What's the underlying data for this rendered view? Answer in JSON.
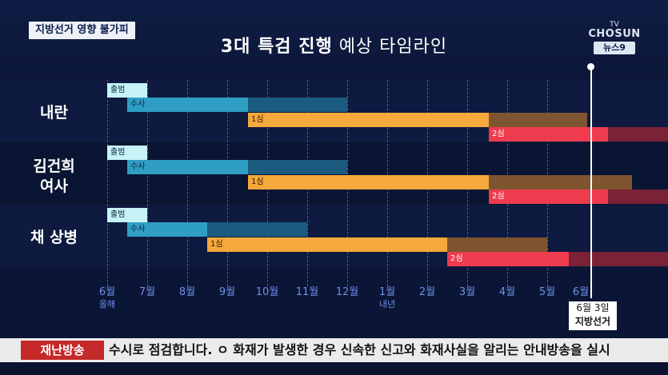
{
  "header": {
    "tag": "지방선거 영향 불가피",
    "title_bold": "3대 특검 진행",
    "title_light": "예상 타임라인"
  },
  "logo": {
    "line1": "TV",
    "line2": "CHOSUN",
    "line3": "뉴스9"
  },
  "rows": [
    {
      "label": "내란"
    },
    {
      "label_line1": "김건희",
      "label_line2": "여사"
    },
    {
      "label": "채 상병"
    }
  ],
  "bars": {
    "launch": "출범",
    "investigation": "수사",
    "first_trial": "1심",
    "second_trial": "2심"
  },
  "axis": {
    "months": [
      "6월",
      "7월",
      "8월",
      "9월",
      "10월",
      "11월",
      "12월",
      "1월",
      "2월",
      "3월",
      "4월",
      "5월",
      "6월"
    ],
    "sub_this_year": "올해",
    "sub_next_year": "내년"
  },
  "marker": {
    "date": "6월 3일",
    "event": "지방선거"
  },
  "ticker": {
    "label": "재난방송",
    "text": "수시로 점검합니다. ㅇ 화재가 발생한 경우 신속한 신고와 화재사실을 알리는 안내방송을 실시"
  },
  "colors": {
    "background": "#0b1636",
    "launch": "#c6f2f8",
    "investigation": "#2f9ec4",
    "first_trial": "#f5a83b",
    "second_trial": "#ee3c4e",
    "ticker_label": "#c42a2a"
  }
}
